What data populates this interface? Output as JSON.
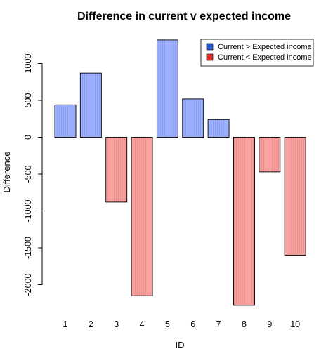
{
  "chart_data": {
    "type": "bar",
    "title": "Difference in current v expected income",
    "xlabel": "ID",
    "ylabel": "Difference",
    "categories": [
      "1",
      "2",
      "3",
      "4",
      "5",
      "6",
      "7",
      "8",
      "9",
      "10"
    ],
    "values": [
      440,
      870,
      -880,
      -2150,
      1320,
      520,
      240,
      -2280,
      -470,
      -1600
    ],
    "ylim": [
      -2250,
      1350
    ],
    "yticks": [
      1000,
      500,
      0,
      -500,
      -1000,
      -1500,
      -2000
    ],
    "ytick_labels": [
      "1000",
      "500",
      "0",
      "-500",
      "-1000",
      "-1500",
      "-2000"
    ],
    "legend": {
      "position": "top-right",
      "items": [
        {
          "label": "Current > Expected income",
          "color": "#2b5cd6"
        },
        {
          "label": "Current < Expected income",
          "color": "#e0302a"
        }
      ]
    },
    "colors": {
      "positive_fill": "#9fb0fb",
      "positive_hatch": "#7e93f2",
      "negative_fill": "#f7a3a1",
      "negative_hatch": "#ea8583"
    }
  }
}
